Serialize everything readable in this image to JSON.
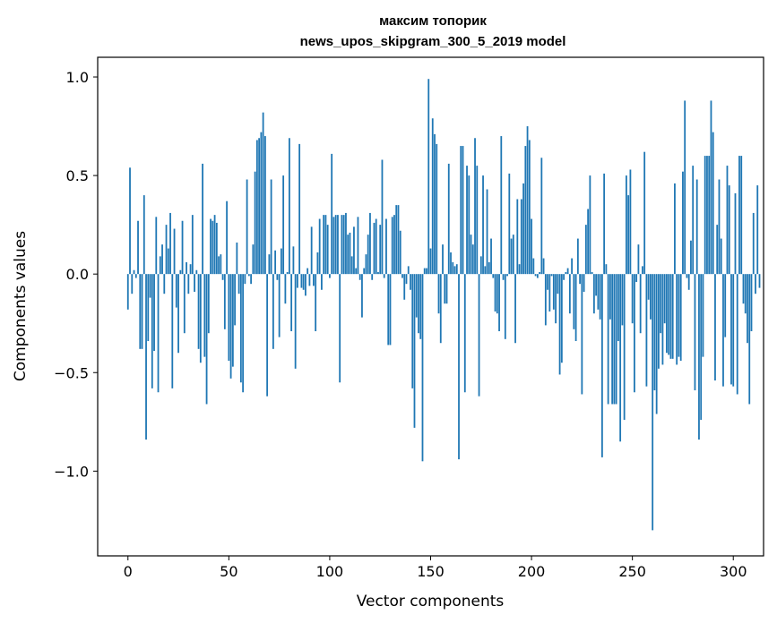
{
  "chart_data": {
    "type": "bar",
    "title_line1": "максим топорик",
    "title_line2": "news_upos_skipgram_300_5_2019 model",
    "xlabel": "Vector components",
    "ylabel": "Components values",
    "xlim": [
      -15,
      315
    ],
    "ylim": [
      -1.43,
      1.1
    ],
    "xticks": [
      0,
      50,
      100,
      150,
      200,
      250,
      300
    ],
    "xtick_labels": [
      "0",
      "50",
      "100",
      "150",
      "200",
      "250",
      "300"
    ],
    "yticks": [
      -1.0,
      -0.5,
      0.0,
      0.5,
      1.0
    ],
    "ytick_labels": [
      "−1.0",
      "−0.5",
      "0.0",
      "0.5",
      "1.0"
    ],
    "bar_color": "#1f77b4",
    "values": [
      -0.18,
      0.54,
      -0.1,
      0.02,
      -0.02,
      0.27,
      -0.38,
      -0.38,
      0.4,
      -0.84,
      -0.34,
      -0.12,
      -0.58,
      -0.39,
      0.29,
      -0.6,
      0.09,
      0.15,
      -0.1,
      0.25,
      0.13,
      0.31,
      -0.58,
      0.23,
      -0.17,
      -0.4,
      0.02,
      0.27,
      -0.3,
      0.06,
      -0.1,
      0.05,
      0.3,
      -0.09,
      0.02,
      -0.38,
      -0.45,
      0.56,
      -0.42,
      -0.66,
      -0.3,
      0.28,
      0.27,
      0.3,
      0.26,
      0.09,
      0.1,
      -0.03,
      -0.28,
      0.37,
      -0.44,
      -0.53,
      -0.47,
      -0.26,
      0.16,
      -0.1,
      -0.55,
      -0.6,
      -0.05,
      0.48,
      -0.01,
      -0.05,
      0.15,
      0.52,
      0.68,
      0.69,
      0.72,
      0.82,
      0.7,
      -0.62,
      0.1,
      0.48,
      -0.38,
      0.12,
      -0.03,
      -0.32,
      0.13,
      0.5,
      -0.15,
      0.01,
      0.69,
      -0.29,
      0.14,
      -0.48,
      -0.07,
      0.66,
      -0.07,
      -0.08,
      -0.11,
      0.03,
      -0.06,
      0.24,
      -0.06,
      -0.29,
      0.11,
      0.28,
      -0.08,
      0.3,
      0.3,
      0.25,
      -0.02,
      0.61,
      0.29,
      0.3,
      0.3,
      -0.55,
      0.3,
      0.3,
      0.31,
      0.2,
      0.21,
      0.09,
      0.24,
      0.03,
      0.29,
      -0.03,
      -0.22,
      0.03,
      0.1,
      0.2,
      0.31,
      -0.03,
      0.26,
      0.28,
      0.01,
      0.25,
      0.58,
      -0.02,
      0.28,
      -0.36,
      -0.36,
      0.29,
      0.3,
      0.35,
      0.35,
      0.22,
      -0.02,
      -0.13,
      -0.05,
      0.04,
      -0.08,
      -0.58,
      -0.78,
      -0.22,
      -0.3,
      -0.33,
      -0.95,
      0.03,
      0.03,
      0.99,
      0.13,
      0.79,
      0.71,
      0.66,
      -0.2,
      -0.35,
      0.15,
      -0.15,
      -0.15,
      0.56,
      0.11,
      0.06,
      0.04,
      0.05,
      -0.94,
      0.65,
      0.65,
      -0.6,
      0.55,
      0.5,
      0.2,
      0.15,
      0.69,
      0.55,
      -0.62,
      0.09,
      0.5,
      0.04,
      0.43,
      0.06,
      0.18,
      -0.02,
      -0.19,
      -0.2,
      -0.29,
      0.7,
      -0.03,
      -0.33,
      -0.01,
      0.51,
      0.18,
      0.2,
      -0.35,
      0.38,
      0.05,
      0.38,
      0.46,
      0.65,
      0.75,
      0.68,
      0.28,
      0.08,
      -0.01,
      -0.02,
      0.01,
      0.59,
      0.08,
      -0.26,
      -0.08,
      -0.19,
      -0.01,
      -0.18,
      -0.25,
      -0.1,
      -0.51,
      -0.45,
      -0.03,
      0.01,
      0.03,
      -0.2,
      0.08,
      -0.28,
      -0.34,
      0.18,
      -0.05,
      -0.61,
      -0.09,
      0.25,
      0.33,
      0.5,
      0.01,
      -0.2,
      -0.11,
      -0.18,
      -0.23,
      -0.93,
      0.51,
      0.05,
      -0.66,
      -0.23,
      -0.66,
      -0.66,
      -0.66,
      -0.34,
      -0.85,
      -0.26,
      -0.74,
      0.5,
      0.4,
      0.53,
      -0.25,
      -0.6,
      -0.04,
      0.15,
      -0.3,
      0.04,
      0.62,
      -0.57,
      -0.13,
      -0.23,
      -1.3,
      -0.59,
      -0.71,
      -0.48,
      -0.3,
      -0.46,
      -0.25,
      -0.4,
      -0.41,
      -0.43,
      -0.43,
      0.46,
      -0.46,
      -0.42,
      -0.44,
      0.52,
      0.88,
      -0.02,
      -0.08,
      0.17,
      0.55,
      -0.59,
      0.48,
      -0.84,
      -0.74,
      -0.42,
      0.6,
      0.6,
      0.6,
      0.88,
      0.72,
      -0.54,
      0.25,
      0.48,
      0.18,
      -0.57,
      -0.32,
      0.55,
      0.45,
      -0.56,
      -0.57,
      0.41,
      -0.61,
      0.6,
      0.6,
      -0.15,
      -0.2,
      -0.35,
      -0.66,
      -0.29,
      0.31,
      -0.1,
      0.45,
      -0.07
    ]
  }
}
